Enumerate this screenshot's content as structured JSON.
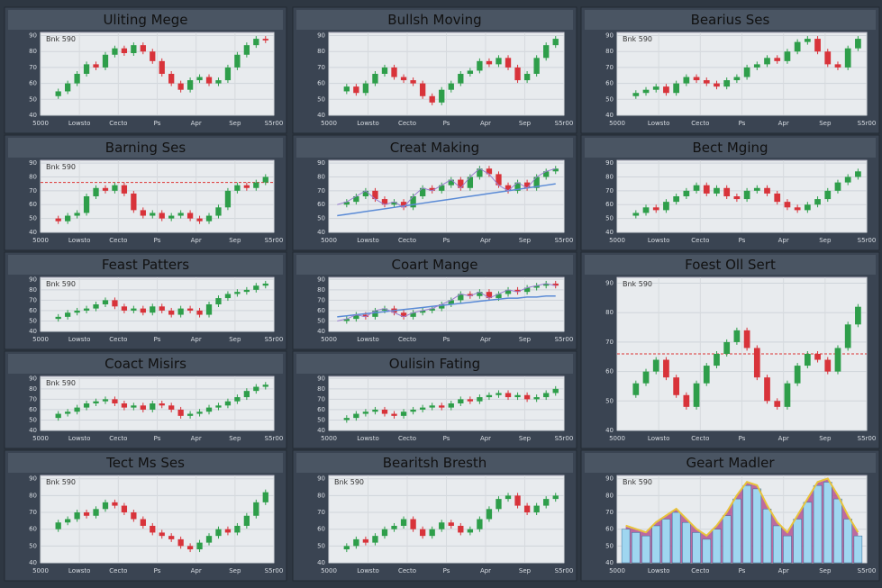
{
  "x_labels": [
    "5000",
    "Lowsto",
    "Cecto",
    "Ps",
    "Apr",
    "Sep",
    "S5r00"
  ],
  "charts": [
    {
      "type": "candle",
      "title": "Uliting Mege",
      "subtitle": "Bnk 590",
      "ylim": [
        40,
        92
      ],
      "yticks": [
        40,
        50,
        60,
        70,
        80,
        90
      ],
      "values": [
        52,
        55,
        60,
        66,
        72,
        70,
        78,
        82,
        79,
        84,
        80,
        74,
        66,
        60,
        56,
        62,
        64,
        60,
        62,
        70,
        78,
        84,
        88,
        87
      ]
    },
    {
      "type": "candle",
      "title": "Bullsh Moving",
      "ylim": [
        40,
        92
      ],
      "yticks": [
        40,
        50,
        60,
        70,
        80,
        90
      ],
      "values": [
        55,
        58,
        54,
        60,
        66,
        70,
        64,
        62,
        60,
        52,
        48,
        56,
        60,
        66,
        68,
        74,
        72,
        76,
        70,
        62,
        66,
        76,
        84,
        88
      ]
    },
    {
      "type": "candle",
      "title": "Bearius Ses",
      "subtitle": "Bnk 590",
      "ylim": [
        40,
        92
      ],
      "yticks": [
        40,
        50,
        60,
        70,
        80,
        90
      ],
      "values": [
        52,
        54,
        56,
        58,
        54,
        60,
        64,
        62,
        60,
        58,
        62,
        64,
        70,
        72,
        76,
        74,
        80,
        86,
        88,
        80,
        72,
        70,
        82,
        88
      ]
    },
    {
      "type": "candle",
      "title": "Barning Ses",
      "subtitle": "Bnk 590",
      "ylim": [
        40,
        92
      ],
      "yticks": [
        40,
        50,
        60,
        70,
        80,
        90
      ],
      "hline": 76,
      "values": [
        50,
        48,
        52,
        54,
        66,
        72,
        70,
        74,
        68,
        56,
        52,
        54,
        50,
        52,
        54,
        50,
        48,
        52,
        58,
        70,
        74,
        72,
        76,
        80
      ]
    },
    {
      "type": "candle",
      "title": "Creat Making",
      "ylim": [
        40,
        92
      ],
      "yticks": [
        40,
        50,
        60,
        70,
        80,
        90
      ],
      "values": [
        60,
        62,
        66,
        70,
        64,
        60,
        62,
        58,
        66,
        72,
        70,
        74,
        78,
        72,
        80,
        86,
        82,
        74,
        70,
        76,
        72,
        80,
        84,
        86
      ],
      "trend": {
        "color": "#5b8bd6",
        "values": [
          52,
          53,
          54,
          55,
          56,
          57,
          58,
          59,
          60,
          61,
          62,
          63,
          64,
          65,
          66,
          67,
          68,
          69,
          70,
          71,
          72,
          73,
          74,
          75
        ]
      }
    },
    {
      "type": "candle",
      "title": "Bect Mging",
      "ylim": [
        40,
        92
      ],
      "yticks": [
        40,
        50,
        60,
        70,
        80,
        90
      ],
      "values": [
        52,
        54,
        58,
        56,
        62,
        66,
        70,
        74,
        68,
        72,
        66,
        64,
        70,
        72,
        68,
        62,
        58,
        56,
        60,
        64,
        70,
        76,
        80,
        84
      ]
    },
    {
      "type": "candle",
      "title": "Feast Patters",
      "subtitle": "Bnk 590",
      "ylim": [
        40,
        92
      ],
      "yticks": [
        40,
        50,
        60,
        70,
        80,
        90
      ],
      "values": [
        52,
        54,
        58,
        60,
        62,
        66,
        70,
        64,
        60,
        62,
        58,
        64,
        60,
        56,
        62,
        60,
        56,
        66,
        72,
        76,
        78,
        80,
        84,
        86
      ]
    },
    {
      "type": "candle",
      "title": "Coart Mange",
      "ylim": [
        40,
        92
      ],
      "yticks": [
        40,
        50,
        60,
        70,
        80,
        90
      ],
      "values": [
        50,
        52,
        56,
        54,
        60,
        62,
        58,
        54,
        58,
        60,
        62,
        66,
        70,
        76,
        74,
        78,
        72,
        76,
        80,
        78,
        82,
        84,
        86,
        84
      ],
      "trend": {
        "color": "#5b8bd6",
        "values": [
          54,
          55,
          56,
          57,
          58,
          59,
          60,
          61,
          62,
          63,
          64,
          65,
          66,
          67,
          68,
          69,
          70,
          71,
          72,
          72,
          73,
          73,
          74,
          74
        ]
      }
    },
    {
      "type": "candle",
      "title": "Coact Misirs",
      "subtitle": "Bnk 590",
      "ylim": [
        40,
        92
      ],
      "yticks": [
        40,
        50,
        60,
        70,
        80,
        90
      ],
      "values": [
        52,
        56,
        58,
        62,
        66,
        68,
        70,
        66,
        62,
        64,
        60,
        66,
        64,
        60,
        54,
        56,
        58,
        62,
        64,
        68,
        72,
        78,
        82,
        84
      ]
    },
    {
      "type": "candle",
      "title": "Oulisin Fating",
      "ylim": [
        40,
        92
      ],
      "yticks": [
        40,
        50,
        60,
        70,
        80,
        90
      ],
      "values": [
        50,
        52,
        56,
        58,
        60,
        56,
        54,
        58,
        60,
        62,
        64,
        62,
        66,
        70,
        68,
        72,
        74,
        76,
        72,
        74,
        70,
        72,
        76,
        80
      ]
    },
    {
      "type": "candle",
      "title": "Foest Oll Sert",
      "subtitle": "Bnk 590",
      "ylim": [
        40,
        92
      ],
      "yticks": [
        40,
        50,
        60,
        70,
        80,
        90
      ],
      "hline": 66,
      "values": [
        52,
        56,
        60,
        64,
        58,
        52,
        48,
        56,
        62,
        66,
        70,
        74,
        68,
        58,
        50,
        48,
        56,
        62,
        66,
        64,
        60,
        68,
        76,
        82
      ]
    },
    {
      "type": "candle",
      "title": "Tect Ms Ses",
      "subtitle": "Bnk 590",
      "ylim": [
        40,
        92
      ],
      "yticks": [
        40,
        50,
        60,
        70,
        80,
        90
      ],
      "values": [
        60,
        64,
        66,
        70,
        68,
        72,
        76,
        74,
        70,
        66,
        62,
        58,
        56,
        54,
        50,
        48,
        52,
        56,
        60,
        58,
        62,
        68,
        76,
        82
      ]
    },
    {
      "type": "candle",
      "title": "Bearitsh Bresth",
      "subtitle": "Bnk 590",
      "ylim": [
        40,
        92
      ],
      "yticks": [
        40,
        50,
        60,
        70,
        80,
        90
      ],
      "values": [
        48,
        50,
        54,
        52,
        56,
        60,
        62,
        66,
        60,
        56,
        60,
        64,
        62,
        58,
        60,
        66,
        72,
        78,
        80,
        74,
        70,
        74,
        78,
        80
      ]
    },
    {
      "type": "bar",
      "title": "Geart Madler",
      "subtitle": "Bnk 590",
      "ylim": [
        40,
        92
      ],
      "yticks": [
        40,
        50,
        60,
        70,
        80,
        90
      ],
      "color": "#9fd6f0",
      "line_color": "#e8c33a",
      "values": [
        60,
        58,
        56,
        62,
        66,
        70,
        64,
        58,
        54,
        60,
        68,
        78,
        86,
        84,
        72,
        62,
        56,
        66,
        76,
        86,
        88,
        78,
        66,
        56
      ]
    }
  ]
}
